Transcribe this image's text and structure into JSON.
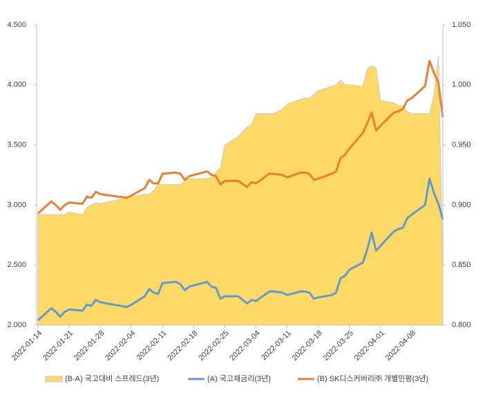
{
  "chart_data": {
    "type": "line",
    "x": [
      "2022-01-14",
      "2022-01-17",
      "2022-01-18",
      "2022-01-19",
      "2022-01-20",
      "2022-01-21",
      "2022-01-24",
      "2022-01-25",
      "2022-01-26",
      "2022-01-27",
      "2022-01-28",
      "2022-02-03",
      "2022-02-04",
      "2022-02-07",
      "2022-02-08",
      "2022-02-09",
      "2022-02-10",
      "2022-02-11",
      "2022-02-14",
      "2022-02-15",
      "2022-02-16",
      "2022-02-17",
      "2022-02-18",
      "2022-02-21",
      "2022-02-22",
      "2022-02-23",
      "2022-02-24",
      "2022-02-25",
      "2022-02-28",
      "2022-03-02",
      "2022-03-03",
      "2022-03-04",
      "2022-03-07",
      "2022-03-08",
      "2022-03-10",
      "2022-03-11",
      "2022-03-14",
      "2022-03-15",
      "2022-03-16",
      "2022-03-17",
      "2022-03-18",
      "2022-03-21",
      "2022-03-22",
      "2022-03-23",
      "2022-03-24",
      "2022-03-25",
      "2022-03-28",
      "2022-03-29",
      "2022-03-30",
      "2022-03-31",
      "2022-04-01",
      "2022-04-04",
      "2022-04-05",
      "2022-04-06",
      "2022-04-07",
      "2022-04-08",
      "2022-04-11",
      "2022-04-12",
      "2022-04-13",
      "2022-04-14",
      "2022-04-15"
    ],
    "xlim": [
      "2022-01-14",
      "2022-04-15"
    ],
    "xticks": [
      "2022-01-14",
      "2022-01-21",
      "2022-01-28",
      "2022-02-04",
      "2022-02-11",
      "2022-02-18",
      "2022-02-25",
      "2022-03-04",
      "2022-03-11",
      "2022-03-18",
      "2022-03-25",
      "2022-04-01",
      "2022-04-08"
    ],
    "ylim": [
      2.0,
      4.5
    ],
    "yticks": [
      {
        "value": 2.0,
        "label": "2.000"
      },
      {
        "value": 2.5,
        "label": "2.500"
      },
      {
        "value": 3.0,
        "label": "3.000"
      },
      {
        "value": 3.5,
        "label": "3.500"
      },
      {
        "value": 4.0,
        "label": "4.000"
      },
      {
        "value": 4.5,
        "label": "4.500"
      }
    ],
    "y2lim": [
      0.8,
      1.05
    ],
    "y2ticks": [
      {
        "value": 0.8,
        "label": "0.800"
      },
      {
        "value": 0.85,
        "label": "0.850"
      },
      {
        "value": 0.9,
        "label": "0.900"
      },
      {
        "value": 0.95,
        "label": "0.950"
      },
      {
        "value": 1.0,
        "label": "1.000"
      },
      {
        "value": 1.05,
        "label": "1.050"
      }
    ],
    "grid": false,
    "legend": "bottom",
    "series": [
      {
        "name": "(B-A) 국고대비 스프레드(3년)",
        "type": "area",
        "axis": "y2",
        "color": "#ffd966",
        "values": [
          0.892,
          0.892,
          0.892,
          0.892,
          0.892,
          0.894,
          0.892,
          0.898,
          0.9,
          0.902,
          0.901,
          0.906,
          0.907,
          0.909,
          0.909,
          0.912,
          0.917,
          0.917,
          0.917,
          0.917,
          0.92,
          0.922,
          0.922,
          0.922,
          0.923,
          0.927,
          0.931,
          0.95,
          0.957,
          0.965,
          0.967,
          0.976,
          0.976,
          0.976,
          0.98,
          0.984,
          0.988,
          0.989,
          0.989,
          0.992,
          0.995,
          0.999,
          1.0,
          1.004,
          1.0,
          1.0,
          0.999,
          1.013,
          1.016,
          1.014,
          0.987,
          0.985,
          0.983,
          0.982,
          0.978,
          0.976,
          0.976,
          0.976,
          0.992,
          1.024,
          0.845
        ]
      },
      {
        "name": "(A) 국고채금리(3년)",
        "type": "line",
        "color": "#5b9bd5",
        "values": [
          2.04,
          2.14,
          2.11,
          2.07,
          2.11,
          2.13,
          2.12,
          2.17,
          2.16,
          2.21,
          2.19,
          2.15,
          2.17,
          2.24,
          2.3,
          2.27,
          2.26,
          2.35,
          2.36,
          2.34,
          2.29,
          2.32,
          2.33,
          2.36,
          2.32,
          2.31,
          2.22,
          2.24,
          2.24,
          2.18,
          2.21,
          2.2,
          2.28,
          2.28,
          2.27,
          2.25,
          2.28,
          2.28,
          2.27,
          2.22,
          2.23,
          2.25,
          2.27,
          2.39,
          2.41,
          2.46,
          2.52,
          2.63,
          2.77,
          2.62,
          2.66,
          2.78,
          2.8,
          2.81,
          2.89,
          2.92,
          3.0,
          3.22,
          3.1,
          3.01,
          2.88
        ]
      },
      {
        "name": "(B) SK디스커버리㈜ 개별민평(3년)",
        "type": "line",
        "color": "#ed7d31",
        "values": [
          2.93,
          3.03,
          3.0,
          2.96,
          3.0,
          3.02,
          3.01,
          3.07,
          3.06,
          3.11,
          3.09,
          3.06,
          3.08,
          3.14,
          3.21,
          3.18,
          3.18,
          3.26,
          3.27,
          3.26,
          3.21,
          3.24,
          3.25,
          3.28,
          3.25,
          3.24,
          3.17,
          3.2,
          3.2,
          3.15,
          3.19,
          3.18,
          3.26,
          3.26,
          3.25,
          3.23,
          3.27,
          3.27,
          3.26,
          3.21,
          3.22,
          3.26,
          3.28,
          3.39,
          3.42,
          3.47,
          3.6,
          3.68,
          3.77,
          3.62,
          3.66,
          3.77,
          3.78,
          3.8,
          3.87,
          3.89,
          3.99,
          4.2,
          4.1,
          4.02,
          3.73
        ]
      }
    ]
  }
}
